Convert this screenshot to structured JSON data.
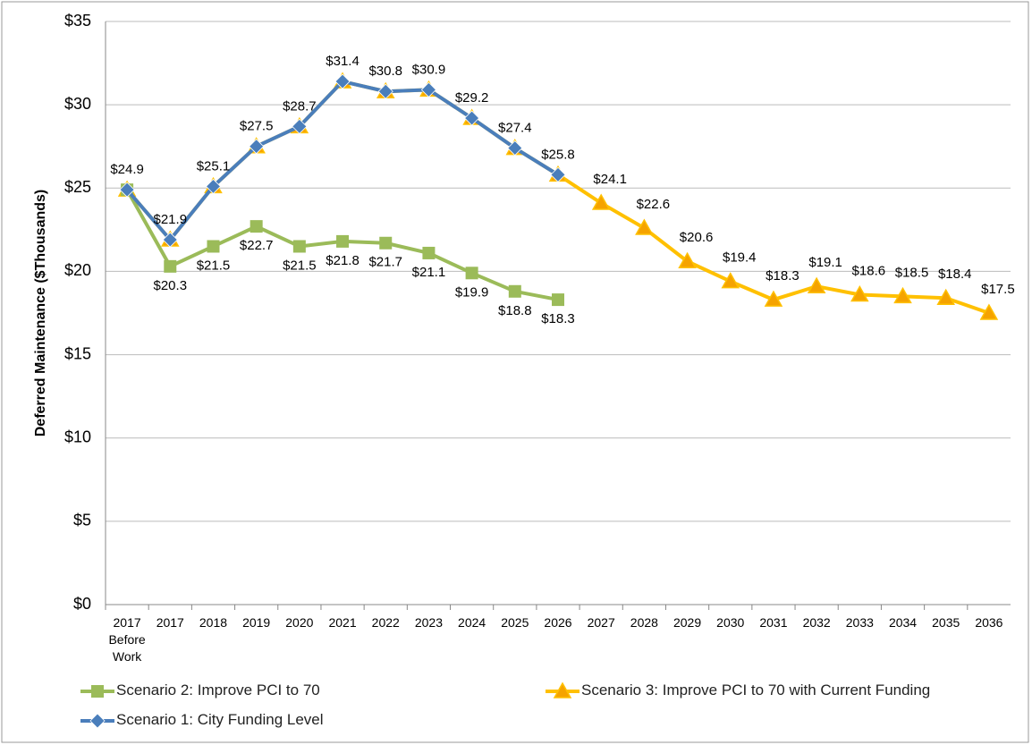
{
  "chart_data": {
    "type": "line",
    "y_axis_label": "Deferred Maintenance ($Thousands)",
    "categories": [
      "2017 Before Work",
      "2017",
      "2018",
      "2019",
      "2020",
      "2021",
      "2022",
      "2023",
      "2024",
      "2025",
      "2026",
      "2027",
      "2028",
      "2029",
      "2030",
      "2031",
      "2032",
      "2033",
      "2034",
      "2035",
      "2036"
    ],
    "series": [
      {
        "name": "Scenario 1: City Funding Level",
        "color": "#4a7ebb",
        "marker": "diamond",
        "values": [
          24.9,
          21.9,
          25.1,
          27.5,
          28.7,
          31.4,
          30.8,
          30.9,
          29.2,
          27.4,
          25.8,
          null,
          null,
          null,
          null,
          null,
          null,
          null,
          null,
          null,
          null
        ],
        "value_labels": [
          "$24.9",
          "$21.9",
          "$25.1",
          "$27.5",
          "$28.7",
          "$31.4",
          "$30.8",
          "$30.9",
          "$29.2",
          "$27.4",
          "$25.8",
          null,
          null,
          null,
          null,
          null,
          null,
          null,
          null,
          null,
          null
        ]
      },
      {
        "name": "Scenario 2: Improve PCI to 70",
        "color": "#9bbb59",
        "marker": "square",
        "values": [
          24.9,
          20.3,
          21.5,
          22.7,
          21.5,
          21.8,
          21.7,
          21.1,
          19.9,
          18.8,
          18.3,
          null,
          null,
          null,
          null,
          null,
          null,
          null,
          null,
          null,
          null
        ],
        "value_labels": [
          null,
          "$20.3",
          "$21.5",
          "$22.7",
          "$21.5",
          "$21.8",
          "$21.7",
          "$21.1",
          "$19.9",
          "$18.8",
          "$18.3",
          null,
          null,
          null,
          null,
          null,
          null,
          null,
          null,
          null,
          null
        ]
      },
      {
        "name": "Scenario 3: Improve PCI to 70 with Current Funding",
        "color": "#ffc000",
        "marker": "triangle",
        "values": [
          24.9,
          21.9,
          25.1,
          27.5,
          28.7,
          31.4,
          30.8,
          30.9,
          29.2,
          27.4,
          25.8,
          24.1,
          22.6,
          20.6,
          19.4,
          18.3,
          19.1,
          18.6,
          18.5,
          18.4,
          17.5
        ],
        "value_labels": [
          null,
          null,
          null,
          null,
          null,
          null,
          null,
          null,
          null,
          null,
          null,
          "$24.1",
          "$22.6",
          "$20.6",
          "$19.4",
          "$18.3",
          "$19.1",
          "$18.6",
          "$18.5",
          "$18.4",
          "$17.5"
        ]
      }
    ],
    "ylim": [
      0,
      35
    ],
    "yticks": [
      {
        "value": 0,
        "label": "$0"
      },
      {
        "value": 5,
        "label": "$5"
      },
      {
        "value": 10,
        "label": "$10"
      },
      {
        "value": 15,
        "label": "$15"
      },
      {
        "value": 20,
        "label": "$20"
      },
      {
        "value": 25,
        "label": "$25"
      },
      {
        "value": 30,
        "label": "$30"
      },
      {
        "value": 35,
        "label": "$35"
      }
    ],
    "grid": true
  }
}
